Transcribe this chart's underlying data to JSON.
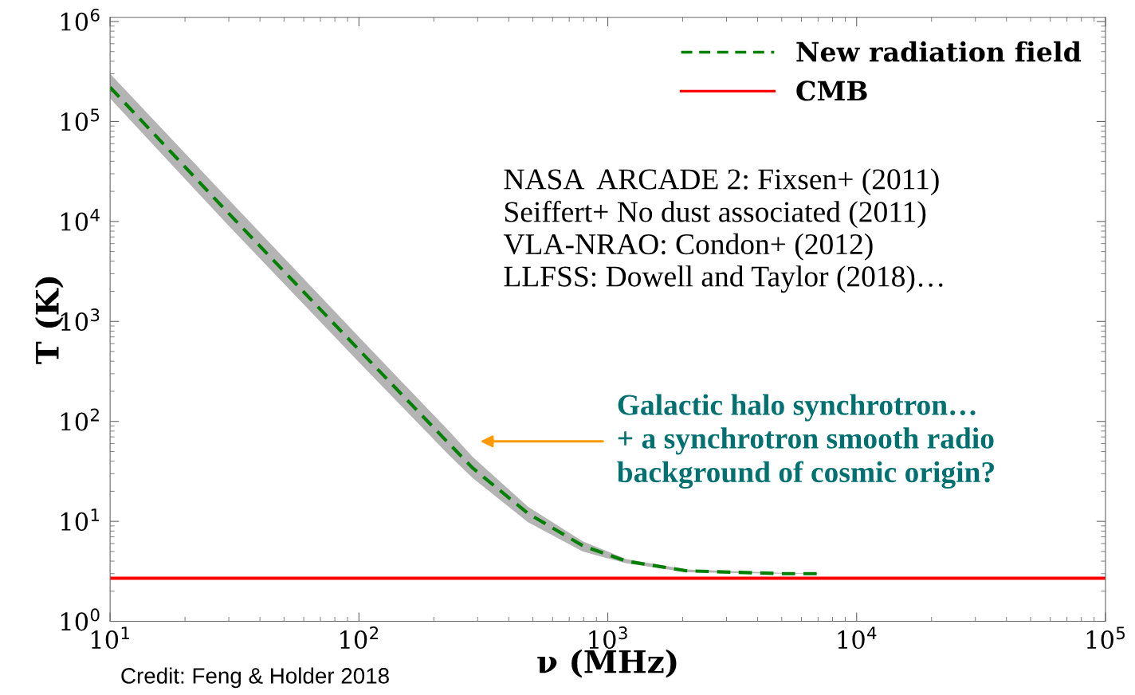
{
  "chart_data": {
    "type": "line",
    "xlabel": "ν (MHz)",
    "ylabel": "T (K)",
    "log": "xy",
    "grid": false,
    "legend": "top right",
    "marker": "none",
    "xlim": [
      10,
      100000
    ],
    "ylim": [
      1,
      1100000
    ],
    "xticks": [
      {
        "value": 10,
        "label": "10$^{1}$"
      },
      {
        "value": 100,
        "label": "10$^{2}$"
      },
      {
        "value": 1000,
        "label": "10$^{3}$"
      },
      {
        "value": 10000,
        "label": "10$^{4}$"
      },
      {
        "value": 100000,
        "label": "10$^{5}$"
      }
    ],
    "yticks": [
      {
        "value": 1,
        "label": "10$^{0}$"
      },
      {
        "value": 10,
        "label": "10$^{1}$"
      },
      {
        "value": 100,
        "label": "10$^{2}$"
      },
      {
        "value": 1000,
        "label": "10$^{3}$"
      },
      {
        "value": 10000,
        "label": "10$^{4}$"
      },
      {
        "value": 100000,
        "label": "10$^{5}$"
      },
      {
        "value": 1000000,
        "label": "10$^{6}$"
      }
    ],
    "series": [
      {
        "name": "New radiation field",
        "color": "#008000",
        "line_style": "dashed",
        "x": [
          10,
          30,
          100,
          230,
          287,
          478,
          794,
          1186,
          2075,
          5000,
          7000
        ],
        "values": [
          220000,
          12000,
          520,
          60,
          34,
          12,
          5.7,
          4,
          3.2,
          3,
          3
        ],
        "lower": [
          170000,
          9000,
          390,
          46,
          27,
          9.8,
          5,
          3.8,
          3.1,
          3,
          3
        ],
        "upper": [
          300000,
          16500,
          700,
          80,
          44,
          14,
          6.3,
          4.2,
          3.3,
          3.05,
          3.03
        ]
      },
      {
        "name": "CMB",
        "color": "#ff0000",
        "line_style": "solid",
        "x": [
          10,
          100000
        ],
        "values": [
          2.7,
          2.7
        ]
      }
    ],
    "annotations": [
      "NASA  ARCADE 2: Fixsen+ (2011)\nSeiffert+ No dust associated (2011)\nVLA-NRAO: Condon+ (2012)\nLLFSS: Dowell and Taylor (2018)…",
      "Galactic halo synchrotron…\n+ a synchrotron smooth radio\nbackground of cosmic origin?",
      "Credit: Feng & Holder 2018"
    ]
  }
}
